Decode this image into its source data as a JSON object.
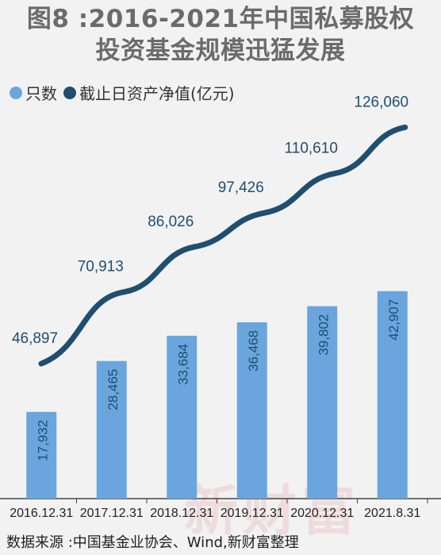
{
  "header": {
    "title_line1": "图8 :2016-2021年中国私募股权",
    "title_line2": "投资基金规模迅猛发展"
  },
  "legend": {
    "bars_label": "只数",
    "line_label": "截止日资产净值(亿元)"
  },
  "colors": {
    "bar": "#6aa6dd",
    "line": "#1f4e70",
    "title": "#6b6b6b",
    "background": "#f2f2f2"
  },
  "chart_data": {
    "type": "bar",
    "categories": [
      "2016.12.31",
      "2017.12.31",
      "2018.12.31",
      "2019.12.31",
      "2020.12.31",
      "2021.8.31"
    ],
    "series": [
      {
        "name": "只数",
        "type": "bar",
        "values": [
          17932,
          28465,
          33684,
          36468,
          39802,
          42907
        ]
      },
      {
        "name": "截止日资产净值(亿元)",
        "type": "line",
        "values": [
          46897,
          70913,
          86026,
          97426,
          110610,
          126060
        ]
      }
    ],
    "bar_labels": [
      "17,932",
      "28,465",
      "33,684",
      "36,468",
      "39,802",
      "42,907"
    ],
    "line_labels": [
      "46,897",
      "70,913",
      "86,026",
      "97,426",
      "110,610",
      "126,060"
    ],
    "legend_position": "top-left",
    "grid": false
  },
  "footer": {
    "source": "数据来源 :中国基金业协会、Wind,新财富整理",
    "watermark": "新财富"
  }
}
